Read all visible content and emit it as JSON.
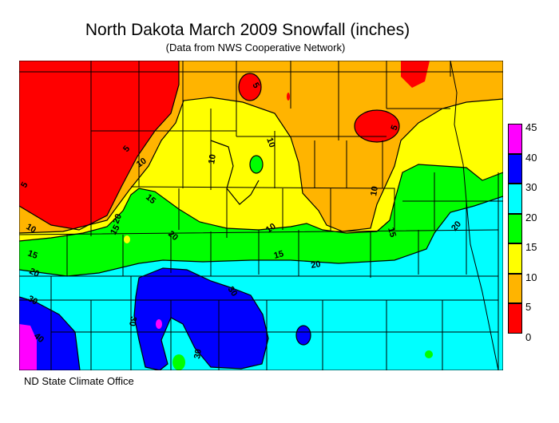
{
  "title": "North Dakota March 2009 Snowfall (inches)",
  "subtitle": "(Data from NWS Cooperative Network)",
  "credit": "ND State Climate Office",
  "legend": {
    "bins": [
      {
        "label": "45",
        "color": "#ff00ff"
      },
      {
        "label": "40",
        "color": "#0000ff"
      },
      {
        "label": "30",
        "color": "#00ffff"
      },
      {
        "label": "20",
        "color": "#00ff00"
      },
      {
        "label": "15",
        "color": "#ffff00"
      },
      {
        "label": "10",
        "color": "#ffb400"
      },
      {
        "label": "5",
        "color": "#ff0000"
      },
      {
        "label": "0",
        "color": ""
      }
    ]
  },
  "contour_labels": [
    "5",
    "5",
    "5",
    "5",
    "10",
    "10",
    "10",
    "10",
    "10",
    "10",
    "15",
    "15",
    "15",
    "15",
    "15",
    "20",
    "20",
    "20",
    "20",
    "20",
    "30",
    "30",
    "30",
    "30",
    "40"
  ]
}
